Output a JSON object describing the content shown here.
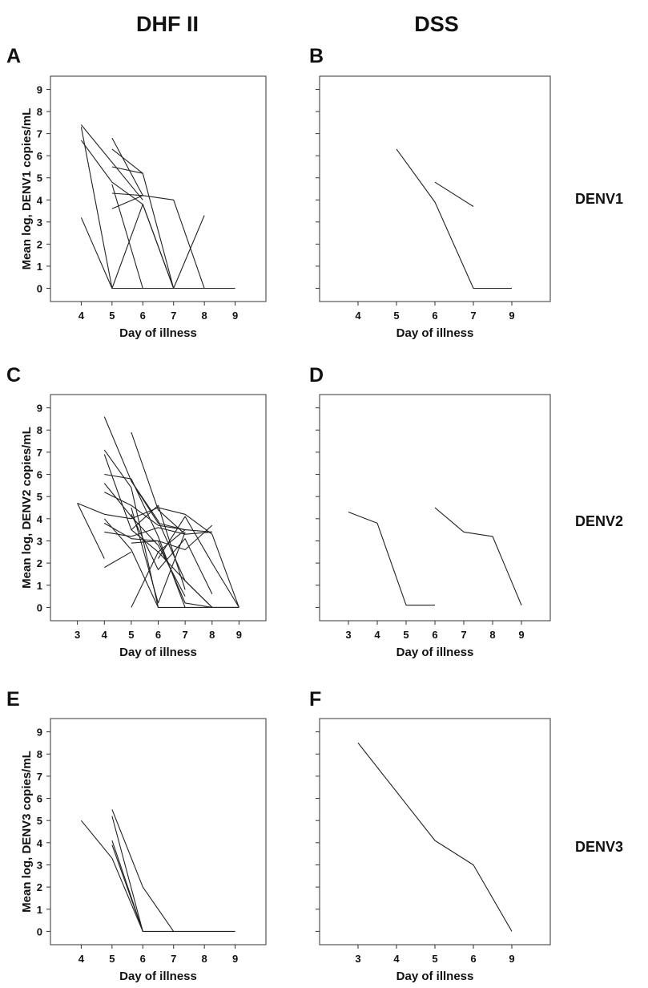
{
  "column_titles": [
    "DHF II",
    "DSS"
  ],
  "row_labels": [
    "DENV1",
    "DENV2",
    "DENV3"
  ],
  "chart_data": [
    {
      "panel": "A",
      "type": "line",
      "xlabel": "Day of illness",
      "ylabel": "Mean log, DENV1 copies/mL",
      "xticks": [
        4,
        5,
        6,
        7,
        8,
        9
      ],
      "yticks": [
        0,
        1,
        2,
        3,
        4,
        5,
        6,
        7,
        8,
        9
      ],
      "xlim": [
        3.3,
        9.5
      ],
      "ylim": [
        -0.6,
        9.6
      ],
      "series": [
        {
          "x": [
            4,
            5,
            6,
            7,
            8,
            9
          ],
          "y": [
            7.3,
            0,
            0,
            0,
            0,
            0
          ]
        },
        {
          "x": [
            4,
            5,
            6,
            7,
            8
          ],
          "y": [
            6.7,
            4.8,
            3.8,
            0,
            0
          ]
        },
        {
          "x": [
            4,
            6
          ],
          "y": [
            7.4,
            4.0
          ]
        },
        {
          "x": [
            4,
            5
          ],
          "y": [
            3.2,
            0
          ]
        },
        {
          "x": [
            5,
            6,
            7,
            8
          ],
          "y": [
            6.8,
            4.2,
            4.0,
            0
          ]
        },
        {
          "x": [
            5,
            6,
            7
          ],
          "y": [
            6.3,
            5.2,
            0
          ]
        },
        {
          "x": [
            5,
            6
          ],
          "y": [
            5.5,
            5.2
          ]
        },
        {
          "x": [
            5,
            6
          ],
          "y": [
            4.7,
            0
          ]
        },
        {
          "x": [
            5,
            6
          ],
          "y": [
            4.3,
            4.2
          ]
        },
        {
          "x": [
            5,
            6
          ],
          "y": [
            3.6,
            4.2
          ]
        },
        {
          "x": [
            5,
            6,
            7
          ],
          "y": [
            0,
            3.8,
            0
          ]
        },
        {
          "x": [
            7,
            8
          ],
          "y": [
            0,
            3.3
          ]
        }
      ]
    },
    {
      "panel": "B",
      "type": "line",
      "xlabel": "Day of illness",
      "ylabel": "",
      "xticks": [
        4,
        5,
        6,
        7,
        9
      ],
      "yticks": [
        0,
        1,
        2,
        3,
        4,
        5,
        6,
        7,
        8,
        9
      ],
      "xlim": [
        3.3,
        9.5
      ],
      "ylim": [
        -0.6,
        9.6
      ],
      "series": [
        {
          "x": [
            5,
            6,
            7,
            9
          ],
          "y": [
            6.3,
            3.9,
            0,
            0
          ]
        },
        {
          "x": [
            6,
            7
          ],
          "y": [
            4.8,
            3.7
          ]
        }
      ]
    },
    {
      "panel": "C",
      "type": "line",
      "xlabel": "Day of illness",
      "ylabel": "Mean log, DENV2 copies/mL",
      "xticks": [
        3,
        4,
        5,
        6,
        7,
        8,
        9
      ],
      "yticks": [
        0,
        1,
        2,
        3,
        4,
        5,
        6,
        7,
        8,
        9
      ],
      "xlim": [
        2.3,
        9.5
      ],
      "ylim": [
        -0.6,
        9.6
      ],
      "series": [
        {
          "x": [
            3,
            4
          ],
          "y": [
            4.7,
            2.2
          ]
        },
        {
          "x": [
            3,
            4,
            5,
            6,
            7,
            8,
            9
          ],
          "y": [
            4.7,
            4.2,
            4.0,
            4.5,
            4.2,
            3.3,
            0
          ]
        },
        {
          "x": [
            4,
            5,
            6,
            7,
            8
          ],
          "y": [
            8.6,
            5.7,
            3.8,
            3.5,
            3.4
          ]
        },
        {
          "x": [
            4,
            5,
            6,
            7
          ],
          "y": [
            7.1,
            5.4,
            0,
            0
          ]
        },
        {
          "x": [
            4,
            5,
            6,
            7,
            8
          ],
          "y": [
            6.9,
            3.5,
            2.5,
            1.2,
            0
          ]
        },
        {
          "x": [
            4,
            5,
            6,
            7,
            8,
            9
          ],
          "y": [
            6.0,
            5.8,
            3.2,
            0,
            0,
            0
          ]
        },
        {
          "x": [
            4,
            5,
            6,
            7
          ],
          "y": [
            5.6,
            4.1,
            2.8,
            0.5
          ]
        },
        {
          "x": [
            4,
            5,
            6,
            7
          ],
          "y": [
            5.2,
            4.6,
            3.7,
            3.5
          ]
        },
        {
          "x": [
            4,
            5,
            6
          ],
          "y": [
            4.0,
            2.6,
            0
          ]
        },
        {
          "x": [
            4,
            5,
            6,
            7,
            8
          ],
          "y": [
            3.8,
            3.1,
            3.0,
            2.6,
            3.7
          ]
        },
        {
          "x": [
            4,
            5,
            6,
            7
          ],
          "y": [
            3.4,
            3.2,
            3.6,
            3.3
          ]
        },
        {
          "x": [
            4,
            5
          ],
          "y": [
            1.8,
            2.5
          ]
        },
        {
          "x": [
            5,
            6,
            7,
            8
          ],
          "y": [
            7.9,
            4.4,
            3.3,
            3.4
          ]
        },
        {
          "x": [
            5,
            6,
            7,
            8,
            9
          ],
          "y": [
            5.7,
            3.9,
            1.2,
            0,
            0
          ]
        },
        {
          "x": [
            5,
            6,
            7
          ],
          "y": [
            4.5,
            0.2,
            3.4
          ]
        },
        {
          "x": [
            5,
            6,
            7,
            8
          ],
          "y": [
            4.2,
            1.7,
            3.1,
            0.6
          ]
        },
        {
          "x": [
            5,
            6,
            7
          ],
          "y": [
            3.5,
            4.6,
            0.8
          ]
        },
        {
          "x": [
            5,
            6,
            7,
            8
          ],
          "y": [
            2.9,
            3.0,
            0.2,
            0
          ]
        },
        {
          "x": [
            5,
            6,
            7
          ],
          "y": [
            0,
            2.5,
            3.5
          ]
        },
        {
          "x": [
            6,
            7,
            8,
            9
          ],
          "y": [
            2.2,
            4.1,
            2.0,
            0
          ]
        }
      ]
    },
    {
      "panel": "D",
      "type": "line",
      "xlabel": "Day of illness",
      "ylabel": "",
      "xticks": [
        3,
        4,
        5,
        6,
        7,
        8,
        9
      ],
      "yticks": [
        0,
        1,
        2,
        3,
        4,
        5,
        6,
        7,
        8,
        9
      ],
      "xlim": [
        2.3,
        9.5
      ],
      "ylim": [
        -0.6,
        9.6
      ],
      "series": [
        {
          "x": [
            3,
            4,
            5,
            6
          ],
          "y": [
            4.3,
            3.8,
            0.1,
            0.1
          ]
        },
        {
          "x": [
            6,
            7,
            8,
            9
          ],
          "y": [
            4.5,
            3.4,
            3.2,
            0.1
          ]
        }
      ]
    },
    {
      "panel": "E",
      "type": "line",
      "xlabel": "Day of illness",
      "ylabel": "Mean log, DENV3 copies/mL",
      "xticks": [
        4,
        5,
        6,
        7,
        8,
        9
      ],
      "yticks": [
        0,
        1,
        2,
        3,
        4,
        5,
        6,
        7,
        8,
        9
      ],
      "xlim": [
        3.3,
        9.5
      ],
      "ylim": [
        -0.6,
        9.6
      ],
      "series": [
        {
          "x": [
            4,
            5,
            6,
            7,
            8,
            9
          ],
          "y": [
            5.0,
            3.3,
            0,
            0,
            0,
            0
          ]
        },
        {
          "x": [
            5,
            6,
            7
          ],
          "y": [
            5.5,
            2.0,
            0
          ]
        },
        {
          "x": [
            5,
            6
          ],
          "y": [
            5.2,
            0
          ]
        },
        {
          "x": [
            5,
            6
          ],
          "y": [
            4.1,
            0
          ]
        },
        {
          "x": [
            5,
            6
          ],
          "y": [
            3.9,
            0
          ]
        }
      ]
    },
    {
      "panel": "F",
      "type": "line",
      "xlabel": "Day of illness",
      "ylabel": "",
      "xticks": [
        3,
        4,
        5,
        6,
        9
      ],
      "yticks": [
        0,
        1,
        2,
        3,
        4,
        5,
        6,
        7,
        8,
        9
      ],
      "xlim": [
        2.3,
        9.5
      ],
      "ylim": [
        -0.6,
        9.6
      ],
      "series": [
        {
          "x": [
            3,
            5,
            6,
            9
          ],
          "y": [
            8.5,
            4.1,
            3.0,
            0
          ]
        }
      ]
    }
  ]
}
